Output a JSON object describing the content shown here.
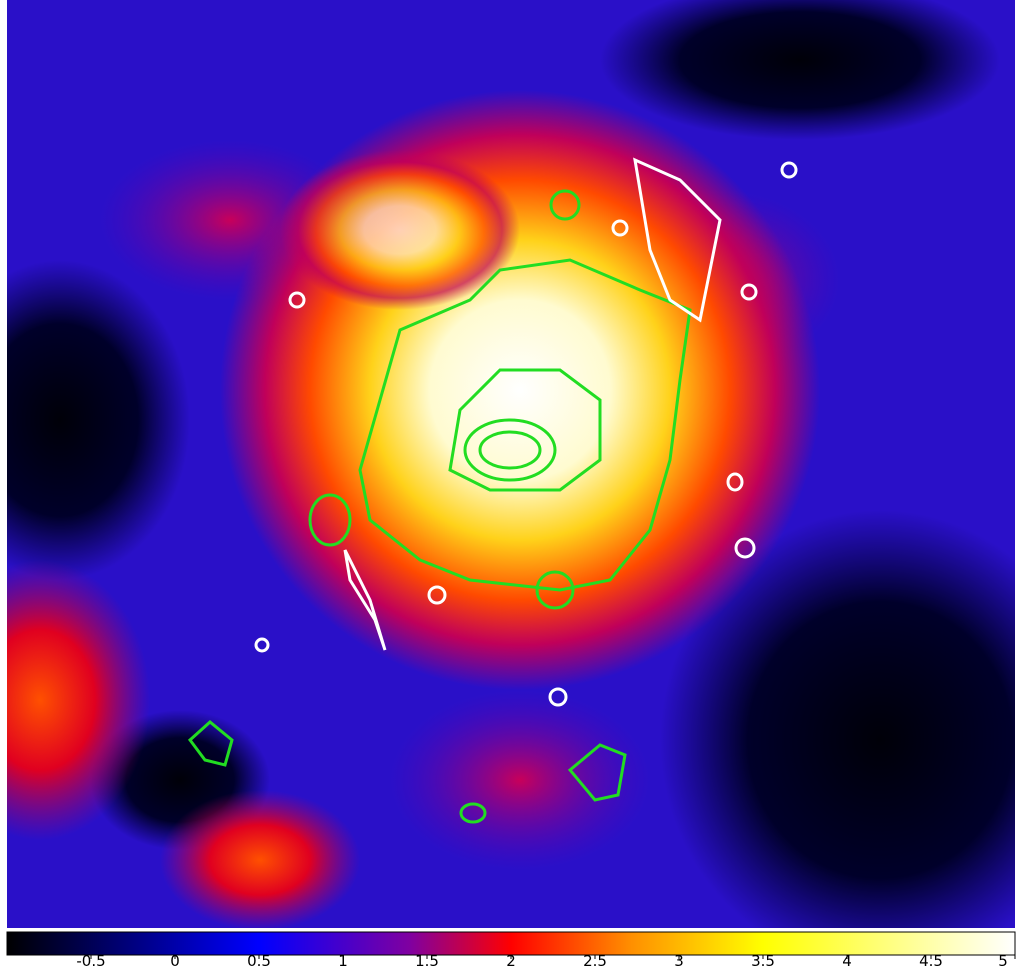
{
  "colorbar": {
    "range": [
      -1,
      5
    ],
    "ticks": [
      -0.5,
      0,
      0.5,
      1,
      1.5,
      2,
      2.5,
      3,
      3.5,
      4,
      4.5,
      5
    ]
  }
}
